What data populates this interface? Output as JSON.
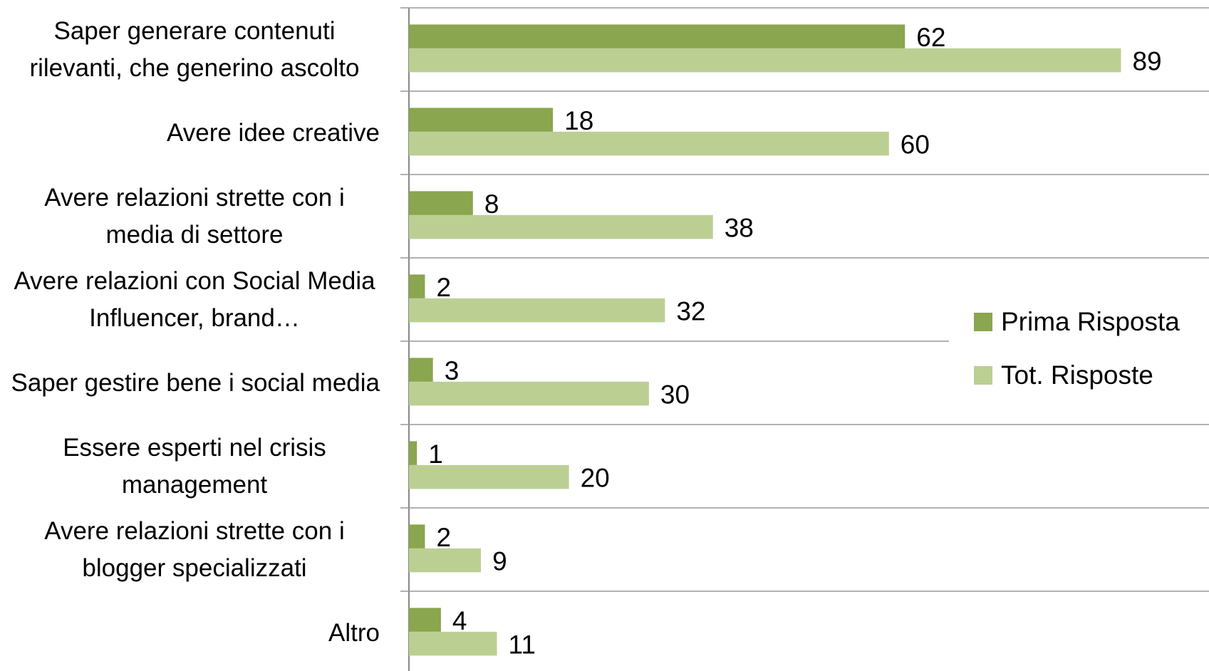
{
  "chart_data": {
    "type": "bar",
    "orientation": "horizontal",
    "categories": [
      "Saper generare contenuti rilevanti, che generino ascolto",
      "Avere idee creative",
      "Avere relazioni strette con i media di settore",
      "Avere relazioni con Social Media Influencer, brand…",
      "Saper gestire bene i social media",
      "Essere esperti nel crisis management",
      "Avere relazioni strette con i blogger specializzati",
      "Altro"
    ],
    "series": [
      {
        "name": "Prima Risposta",
        "color": "#8aa64e",
        "values": [
          62,
          18,
          8,
          2,
          3,
          1,
          2,
          4
        ]
      },
      {
        "name": "Tot. Risposte",
        "color": "#bccf93",
        "values": [
          89,
          60,
          38,
          32,
          30,
          20,
          9,
          11
        ]
      }
    ],
    "xlim": [
      0,
      100
    ],
    "legend": "right"
  }
}
